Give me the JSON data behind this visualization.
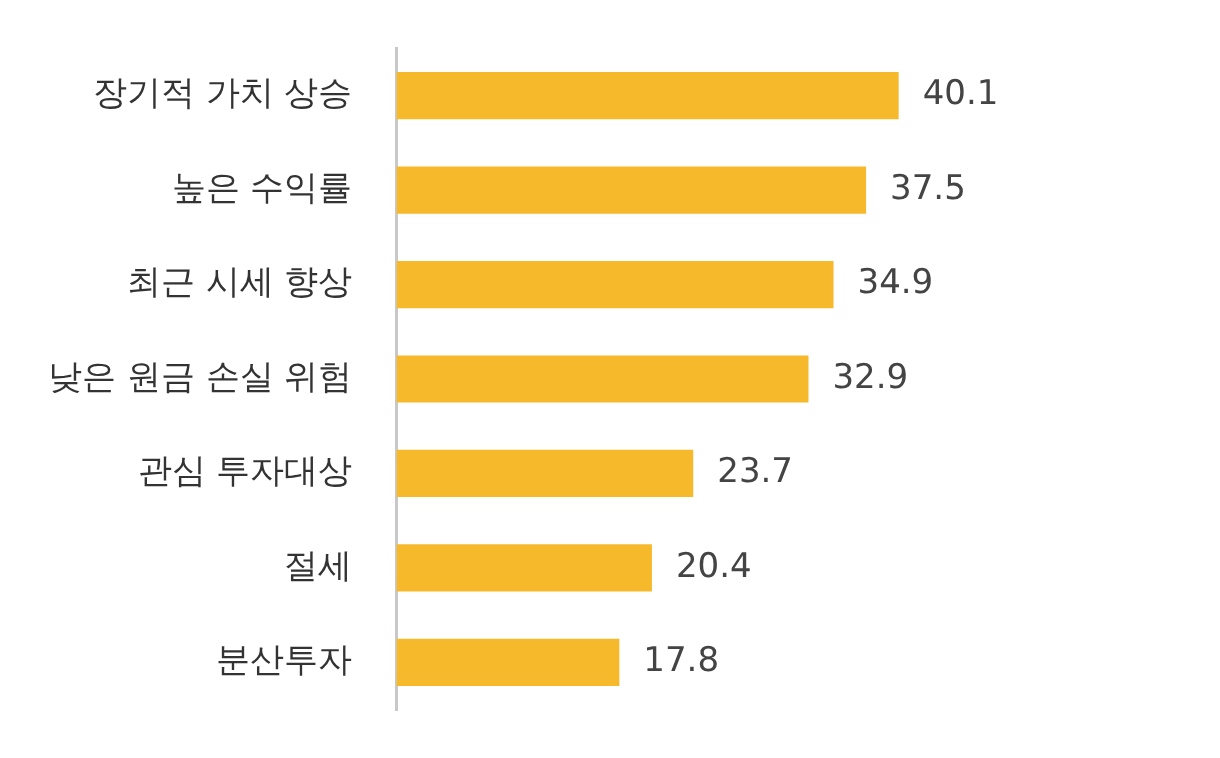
{
  "chart_data": {
    "type": "bar",
    "orientation": "horizontal",
    "categories": [
      "장기적 가치 상승",
      "높은 수익률",
      "최근 시세 향상",
      "낮은 원금 손실 위험",
      "관심 투자대상",
      "절세",
      "분산투자"
    ],
    "values": [
      40.1,
      37.5,
      34.9,
      32.9,
      23.7,
      20.4,
      17.8
    ],
    "color": "#f6b92b",
    "data_labels": true
  }
}
